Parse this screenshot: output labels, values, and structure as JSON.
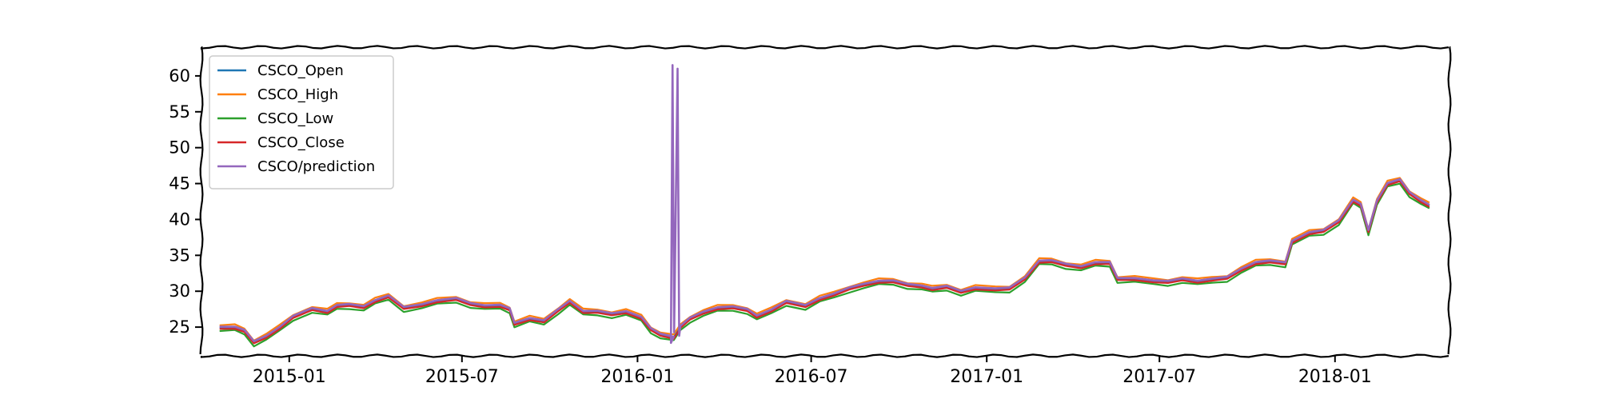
{
  "chart_data": {
    "type": "line",
    "title": "",
    "xlabel": "",
    "ylabel": "",
    "x_range": [
      "2014-10-01",
      "2018-05-01"
    ],
    "ylim": [
      21,
      64
    ],
    "x_ticks": [
      {
        "date": "2015-01-01",
        "label": "2015-01"
      },
      {
        "date": "2015-07-01",
        "label": "2015-07"
      },
      {
        "date": "2016-01-01",
        "label": "2016-01"
      },
      {
        "date": "2016-07-01",
        "label": "2016-07"
      },
      {
        "date": "2017-01-01",
        "label": "2017-01"
      },
      {
        "date": "2017-07-01",
        "label": "2017-07"
      },
      {
        "date": "2018-01-01",
        "label": "2018-01"
      }
    ],
    "y_ticks": [
      25,
      30,
      35,
      40,
      45,
      50,
      55,
      60
    ],
    "grid": false,
    "legend_position": "top-left",
    "series": [
      {
        "name": "CSCO_Open",
        "color": "#1f77b4"
      },
      {
        "name": "CSCO_High",
        "color": "#ff7f0e"
      },
      {
        "name": "CSCO_Low",
        "color": "#2ca02c"
      },
      {
        "name": "CSCO_Close",
        "color": "#d62728"
      },
      {
        "name": "CSCO/prediction",
        "color": "#9467bd"
      }
    ],
    "base_points": [
      [
        "2014-10-20",
        24.9
      ],
      [
        "2014-11-05",
        24.8
      ],
      [
        "2014-11-15",
        24.5
      ],
      [
        "2014-11-25",
        23.0
      ],
      [
        "2014-12-08",
        23.6
      ],
      [
        "2014-12-22",
        24.8
      ],
      [
        "2015-01-05",
        26.5
      ],
      [
        "2015-01-25",
        27.6
      ],
      [
        "2015-02-10",
        27.0
      ],
      [
        "2015-02-20",
        27.9
      ],
      [
        "2015-03-05",
        28.2
      ],
      [
        "2015-03-20",
        27.8
      ],
      [
        "2015-04-01",
        28.5
      ],
      [
        "2015-04-15",
        29.3
      ],
      [
        "2015-05-01",
        27.8
      ],
      [
        "2015-05-20",
        28.0
      ],
      [
        "2015-06-05",
        28.5
      ],
      [
        "2015-06-25",
        29.0
      ],
      [
        "2015-07-10",
        28.3
      ],
      [
        "2015-07-25",
        27.8
      ],
      [
        "2015-08-10",
        27.9
      ],
      [
        "2015-08-20",
        27.6
      ],
      [
        "2015-08-25",
        25.5
      ],
      [
        "2015-09-10",
        26.0
      ],
      [
        "2015-09-25",
        25.8
      ],
      [
        "2015-10-10",
        27.5
      ],
      [
        "2015-10-22",
        28.5
      ],
      [
        "2015-11-05",
        27.0
      ],
      [
        "2015-11-20",
        27.2
      ],
      [
        "2015-12-05",
        26.9
      ],
      [
        "2015-12-20",
        27.0
      ],
      [
        "2016-01-05",
        26.2
      ],
      [
        "2016-01-15",
        24.8
      ],
      [
        "2016-01-25",
        24.0
      ],
      [
        "2016-02-08",
        23.4
      ],
      [
        "2016-02-15",
        25.0
      ],
      [
        "2016-02-25",
        26.3
      ],
      [
        "2016-03-10",
        27.0
      ],
      [
        "2016-03-25",
        27.5
      ],
      [
        "2016-04-10",
        27.8
      ],
      [
        "2016-04-25",
        27.5
      ],
      [
        "2016-05-05",
        26.4
      ],
      [
        "2016-05-20",
        27.2
      ],
      [
        "2016-06-05",
        28.6
      ],
      [
        "2016-06-25",
        28.0
      ],
      [
        "2016-07-10",
        28.8
      ],
      [
        "2016-07-25",
        29.5
      ],
      [
        "2016-08-10",
        30.5
      ],
      [
        "2016-08-25",
        30.9
      ],
      [
        "2016-09-10",
        31.2
      ],
      [
        "2016-09-25",
        31.4
      ],
      [
        "2016-10-10",
        31.0
      ],
      [
        "2016-10-25",
        30.6
      ],
      [
        "2016-11-05",
        30.2
      ],
      [
        "2016-11-20",
        30.7
      ],
      [
        "2016-12-05",
        30.0
      ],
      [
        "2016-12-20",
        30.3
      ],
      [
        "2017-01-10",
        30.2
      ],
      [
        "2017-01-25",
        30.5
      ],
      [
        "2017-02-10",
        31.8
      ],
      [
        "2017-02-25",
        34.0
      ],
      [
        "2017-03-10",
        34.2
      ],
      [
        "2017-03-25",
        33.8
      ],
      [
        "2017-04-10",
        33.3
      ],
      [
        "2017-04-25",
        33.8
      ],
      [
        "2017-05-10",
        34.0
      ],
      [
        "2017-05-18",
        31.8
      ],
      [
        "2017-06-05",
        31.6
      ],
      [
        "2017-06-25",
        31.3
      ],
      [
        "2017-07-10",
        31.4
      ],
      [
        "2017-07-25",
        31.7
      ],
      [
        "2017-08-10",
        31.2
      ],
      [
        "2017-08-25",
        31.6
      ],
      [
        "2017-09-10",
        32.0
      ],
      [
        "2017-09-25",
        33.0
      ],
      [
        "2017-10-10",
        33.8
      ],
      [
        "2017-10-25",
        34.2
      ],
      [
        "2017-11-10",
        34.0
      ],
      [
        "2017-11-17",
        36.8
      ],
      [
        "2017-12-05",
        38.0
      ],
      [
        "2017-12-20",
        38.5
      ],
      [
        "2018-01-05",
        39.8
      ],
      [
        "2018-01-20",
        42.5
      ],
      [
        "2018-01-28",
        42.0
      ],
      [
        "2018-02-05",
        38.5
      ],
      [
        "2018-02-14",
        42.5
      ],
      [
        "2018-02-25",
        44.8
      ],
      [
        "2018-03-10",
        45.5
      ],
      [
        "2018-03-20",
        43.8
      ],
      [
        "2018-04-01",
        42.5
      ],
      [
        "2018-04-10",
        41.8
      ]
    ],
    "prediction_spike": {
      "start_date": "2016-02-05",
      "end_date": "2016-02-12",
      "peak": 61.5,
      "low": 22.8
    }
  }
}
